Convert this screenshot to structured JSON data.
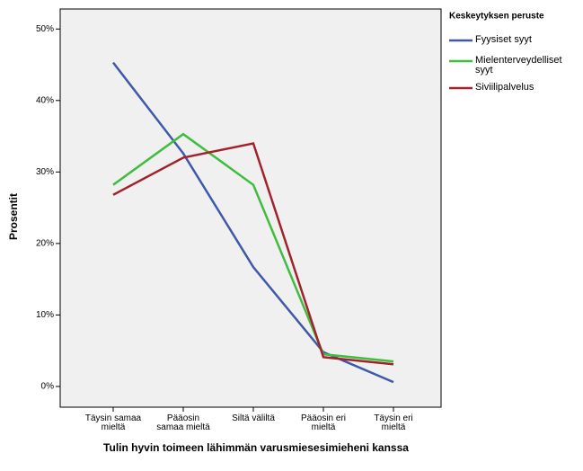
{
  "chart_data": {
    "type": "line",
    "categories": [
      "Täysin samaa mieltä",
      "Pääosin samaa mieltä",
      "Siltä väliltä",
      "Pääosin eri mieltä",
      "Täysin eri mieltä"
    ],
    "series": [
      {
        "name": "Fyysiset syyt",
        "color": "#3e58ac",
        "values": [
          45.3,
          32.6,
          16.7,
          4.8,
          0.6
        ]
      },
      {
        "name": "Mielenterveydelliset syyt",
        "color": "#3ebd3e",
        "values": [
          28.2,
          35.3,
          28.2,
          4.5,
          3.5
        ]
      },
      {
        "name": "Siviilipalvelus",
        "color": "#a2222c",
        "values": [
          26.8,
          32.0,
          34.0,
          4.1,
          3.1
        ]
      }
    ],
    "ylim": [
      -2.9,
      52.8
    ],
    "yticks": [
      {
        "value": 0,
        "label": "0%"
      },
      {
        "value": 10,
        "label": "10%"
      },
      {
        "value": 20,
        "label": "20%"
      },
      {
        "value": 30,
        "label": "30%"
      },
      {
        "value": 40,
        "label": "40%"
      },
      {
        "value": 50,
        "label": "50%"
      }
    ],
    "y_label": "Prosentit",
    "x_label": "Tulin hyvin toimeen lähimmän varusmiesesimieheni kanssa",
    "legend_title": "Keskeytyksen peruste",
    "legend_position": "right"
  }
}
